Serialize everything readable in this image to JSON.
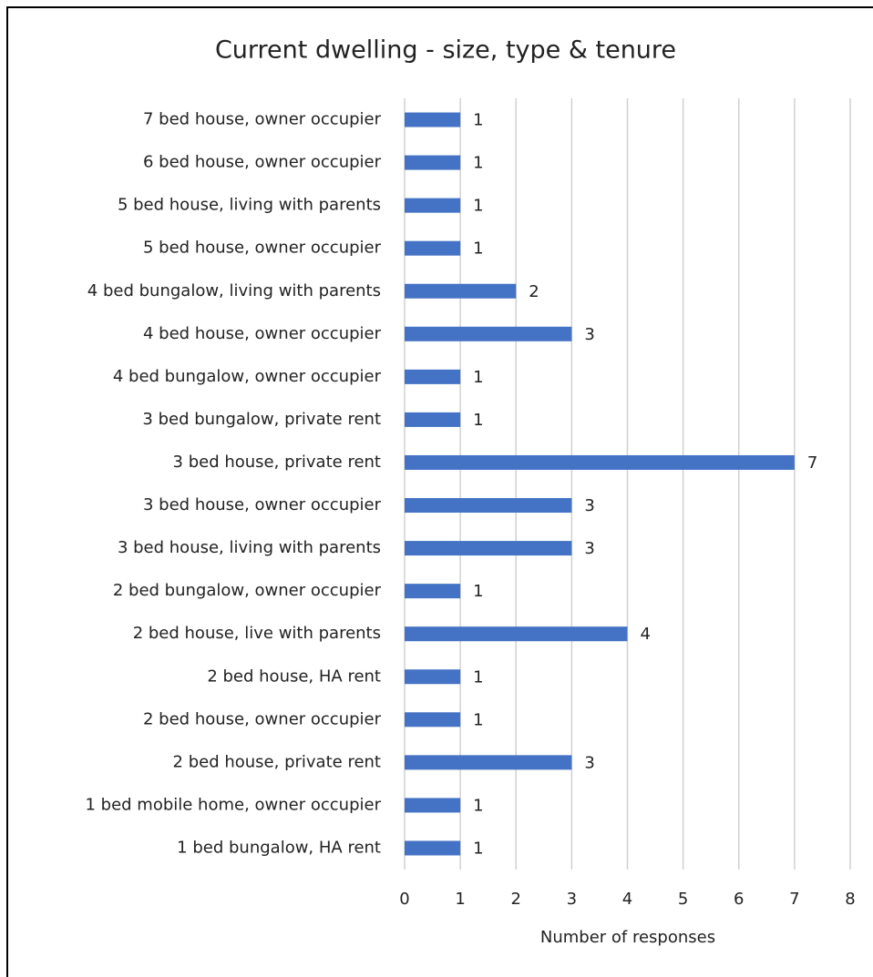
{
  "chart_data": {
    "type": "bar",
    "orientation": "horizontal",
    "title": "Current dwelling - size, type & tenure",
    "x_label": "Number of responses",
    "categories": [
      "7 bed house, owner occupier",
      "6 bed house, owner occupier",
      "5 bed house, living with parents",
      "5 bed house, owner occupier",
      "4 bed bungalow, living with parents",
      "4 bed house, owner occupier",
      "4 bed bungalow, owner occupier",
      "3 bed bungalow, private rent",
      "3 bed house, private rent",
      "3 bed house, owner occupier",
      "3 bed house, living with parents",
      "2 bed bungalow, owner occupier",
      "2 bed house, live with parents",
      "2 bed house, HA rent",
      "2 bed house, owner occupier",
      "2 bed house, private rent",
      "1 bed mobile home, owner occupier",
      "1 bed bungalow, HA rent"
    ],
    "values": [
      1,
      1,
      1,
      1,
      2,
      3,
      1,
      1,
      7,
      3,
      3,
      1,
      4,
      1,
      1,
      3,
      1,
      1
    ],
    "color": "#4472c4",
    "xlim": [
      0,
      8
    ],
    "xticks": [
      0,
      1,
      2,
      3,
      4,
      5,
      6,
      7,
      8
    ],
    "grid": true
  }
}
